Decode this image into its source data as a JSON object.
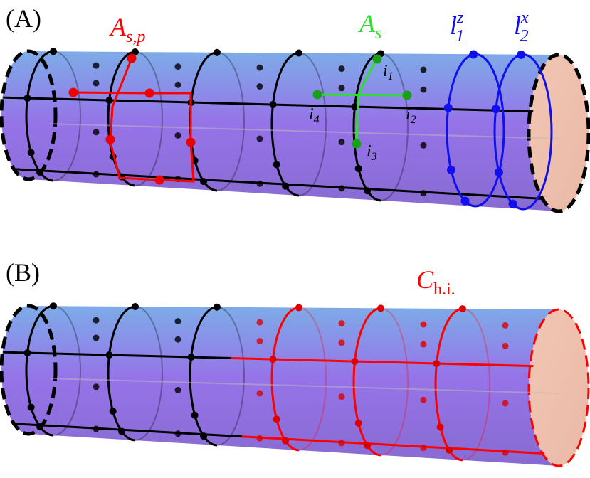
{
  "panels": [
    {
      "label": "(A)",
      "annotations": [
        {
          "main": "A",
          "sub": "s,p",
          "color": "red"
        },
        {
          "main": "A",
          "sub": "s",
          "color": "green"
        },
        {
          "main": "l",
          "sub": "1",
          "sup": "z",
          "color": "blue"
        },
        {
          "main": "l",
          "sub": "2",
          "sup": "x",
          "color": "blue"
        }
      ],
      "vertices": [
        {
          "main": "i",
          "sub": "1"
        },
        {
          "main": "i",
          "sub": "2"
        },
        {
          "main": "i",
          "sub": "3"
        },
        {
          "main": "i",
          "sub": "4"
        }
      ]
    },
    {
      "label": "(B)",
      "annotations": [
        {
          "main": "C",
          "sub": "h.i.",
          "color": "red"
        }
      ]
    }
  ]
}
